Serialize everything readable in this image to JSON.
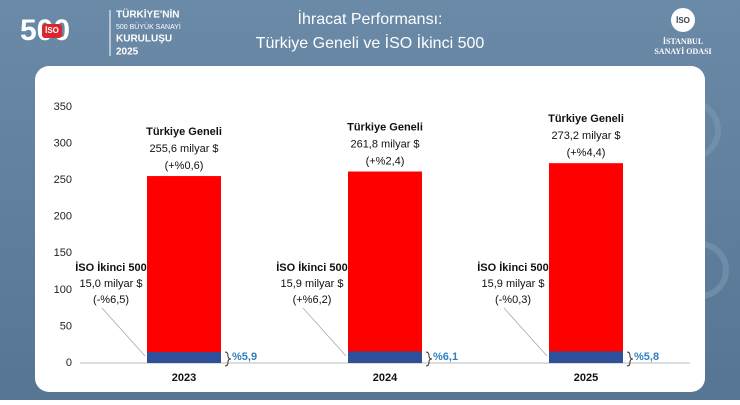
{
  "header": {
    "logo_number": "500",
    "logo_badge": "İSO",
    "logo_lines": [
      "TÜRKİYE'NİN",
      "500 BÜYÜK SANAYİ",
      "KURULUŞU",
      "2025"
    ],
    "org_badge": "İSO",
    "org_lines": [
      "İSTANBUL",
      "SANAYİ ODASI"
    ]
  },
  "chart_data": {
    "type": "bar",
    "title": "İhracat Performansı:",
    "subtitle": "Türkiye Geneli ve İSO İkinci 500",
    "categories": [
      "2023",
      "2024",
      "2025"
    ],
    "series": [
      {
        "name": "Türkiye Geneli",
        "color": "#ff0000",
        "values": [
          255.6,
          261.8,
          273.2
        ],
        "value_labels": [
          "255,6 milyar $",
          "261,8 milyar $",
          "273,2 milyar $"
        ],
        "change_labels": [
          "(+%0,6)",
          "(+%2,4)",
          "(+%4,4)"
        ]
      },
      {
        "name": "İSO İkinci 500",
        "color": "#2e4f9a",
        "values": [
          15.0,
          15.9,
          15.9
        ],
        "value_labels": [
          "15,0 milyar $",
          "15,9 milyar $",
          "15,9 milyar $"
        ],
        "change_labels": [
          "(-%6,5)",
          "(+%6,2)",
          "(-%0,3)"
        ],
        "share_labels": [
          "%5,9",
          "%6,1",
          "%5,8"
        ]
      }
    ],
    "ylim": [
      0,
      350
    ],
    "yticks": [
      0,
      50,
      100,
      150,
      200,
      250,
      300,
      350
    ]
  }
}
